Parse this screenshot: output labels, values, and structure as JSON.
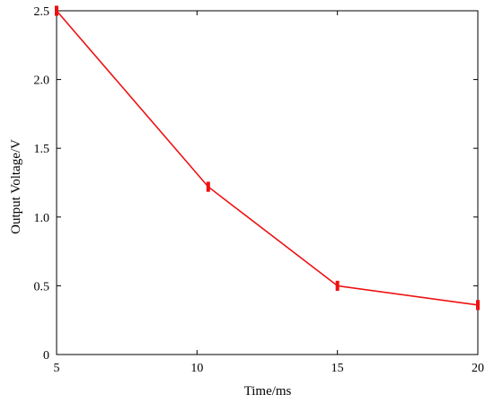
{
  "chart_data": {
    "type": "line",
    "title": "",
    "xlabel": "Time/ms",
    "ylabel": "Output Voltage/V",
    "xlim": [
      5,
      20
    ],
    "ylim": [
      0,
      2.5
    ],
    "x_ticks": [
      {
        "value": 5,
        "label": "5"
      },
      {
        "value": 10,
        "label": "10"
      },
      {
        "value": 15,
        "label": "15"
      },
      {
        "value": 20,
        "label": "20"
      }
    ],
    "y_ticks": [
      {
        "value": 0,
        "label": "0"
      },
      {
        "value": 0.5,
        "label": "0.5"
      },
      {
        "value": 1.0,
        "label": "1.0"
      },
      {
        "value": 1.5,
        "label": "1.5"
      },
      {
        "value": 2.0,
        "label": "2.0"
      },
      {
        "value": 2.5,
        "label": "2.5"
      }
    ],
    "grid": false,
    "legend": "none",
    "series": [
      {
        "color": "#ee1111",
        "points": [
          {
            "x": 5,
            "y": 2.5,
            "err": 0.03
          },
          {
            "x": 10.4,
            "y": 1.22,
            "err": 0.03
          },
          {
            "x": 15,
            "y": 0.5,
            "err": 0.03
          },
          {
            "x": 20,
            "y": 0.36,
            "err": 0.03
          }
        ]
      }
    ]
  }
}
